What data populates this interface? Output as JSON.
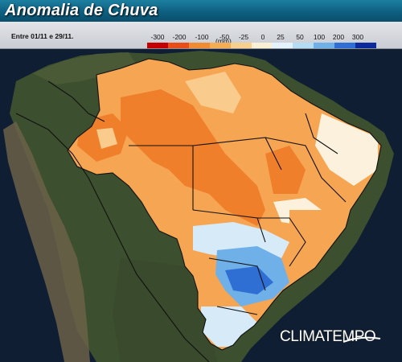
{
  "title": "Anomalia de Chuva",
  "period": "Entre 01/11 e 29/11.",
  "legend": {
    "ticks": [
      "-300",
      "-200",
      "-100",
      "-50",
      "-25",
      "0",
      "25",
      "50",
      "100",
      "200",
      "300"
    ],
    "unit": "(mm)",
    "colors": [
      "#c40000",
      "#e84e1a",
      "#f08a33",
      "#f5ad55",
      "#f8cf8c",
      "#fbf0d6",
      "#e4f2fb",
      "#b6dcf3",
      "#6fb0e8",
      "#2f6ed2",
      "#0c2a9c"
    ]
  },
  "colors": {
    "ocean": "#0f1e33",
    "land_south": "#35472a",
    "land_andes": "#6b6048",
    "strong_dry": "#f07f2c",
    "moderate_dry": "#f6a553",
    "light_dry": "#f9cb8c",
    "near_normal": "#fbf1dc",
    "light_wet": "#d6eaf8",
    "wet": "#6fb0e8",
    "very_wet": "#2f6ed2",
    "border": "#111111"
  },
  "logo": "CLIMATEMPO"
}
